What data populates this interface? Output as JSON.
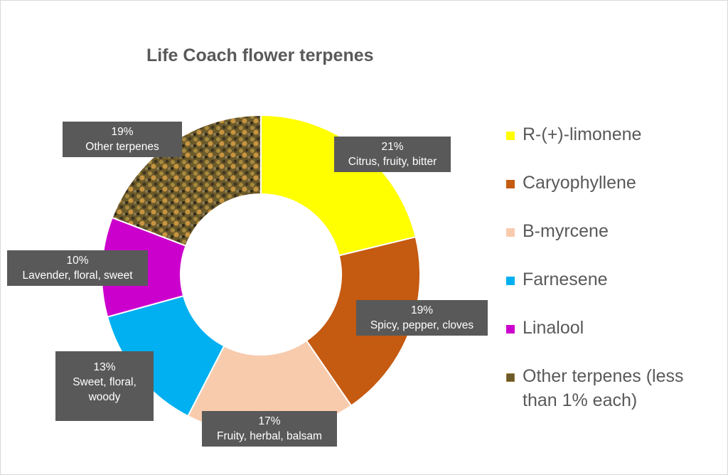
{
  "title": "Life Coach flower terpenes",
  "legend": [
    {
      "label": "R-(+)-limonene",
      "color": "#FFFF00"
    },
    {
      "label": "Caryophyllene",
      "color": "#C55A11"
    },
    {
      "label": "B-myrcene",
      "color": "#F8CBAD"
    },
    {
      "label": "Farnesene",
      "color": "#00B0F0"
    },
    {
      "label": "Linalool",
      "color": "#CC00CC"
    },
    {
      "label": "Other terpenes (less than 1% each)",
      "color": "#6B5A2A"
    }
  ],
  "labels": [
    {
      "pct": "21%",
      "desc": "Citrus, fruity, bitter"
    },
    {
      "pct": "19%",
      "desc": "Spicy, pepper, cloves"
    },
    {
      "pct": "17%",
      "desc": "Fruity, herbal, balsam"
    },
    {
      "pct": "13%",
      "desc": "Sweet, floral, woody"
    },
    {
      "pct": "10%",
      "desc": "Lavender, floral, sweet"
    },
    {
      "pct": "19%",
      "desc": "Other terpenes"
    }
  ],
  "chart_data": {
    "type": "pie",
    "variant": "donut",
    "title": "Life Coach flower terpenes",
    "categories": [
      "R-(+)-limonene",
      "Caryophyllene",
      "B-myrcene",
      "Farnesene",
      "Linalool",
      "Other terpenes (less than 1% each)"
    ],
    "values": [
      21,
      19,
      17,
      13,
      10,
      19
    ],
    "unit": "%",
    "descriptions": [
      "Citrus, fruity, bitter",
      "Spicy, pepper, cloves",
      "Fruity, herbal, balsam",
      "Sweet, floral, woody",
      "Lavender, floral, sweet",
      "Other terpenes"
    ],
    "colors": [
      "#FFFF00",
      "#C55A11",
      "#F8CBAD",
      "#00B0F0",
      "#CC00CC",
      "#6B5A2A"
    ],
    "start_angle": "top, clockwise",
    "legend_position": "right"
  }
}
